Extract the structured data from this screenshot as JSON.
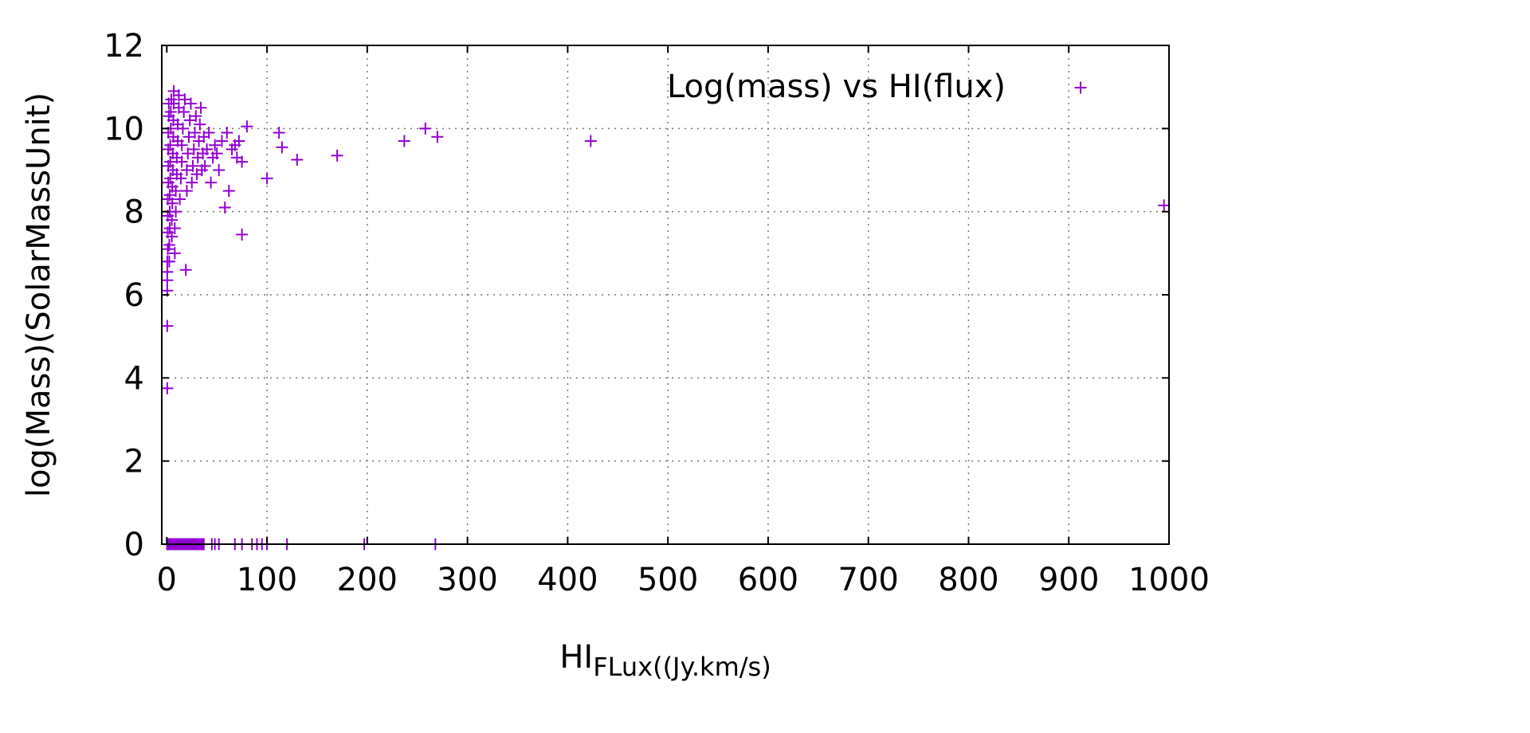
{
  "chart_data": {
    "type": "scatter",
    "xlabel": "HI",
    "xlabel_sub": "FLux((Jy.km/s)",
    "ylabel": "log(Mass)(SolarMassUnit)",
    "xlim": [
      -5,
      1000
    ],
    "ylim": [
      0,
      12
    ],
    "x_ticks": [
      0,
      100,
      200,
      300,
      400,
      500,
      600,
      700,
      800,
      900,
      1000
    ],
    "y_ticks": [
      0,
      2,
      4,
      6,
      8,
      10,
      12
    ],
    "grid": true,
    "legend_position": "top-right",
    "marker": "plus",
    "color": "#9400d3",
    "series": [
      {
        "name": "Log(mass) vs HI(flux)",
        "points": [
          [
            0.5,
            3.75
          ],
          [
            0.5,
            5.25
          ],
          [
            0.5,
            6.1
          ],
          [
            0.5,
            6.35
          ],
          [
            0.5,
            6.55
          ],
          [
            0.5,
            6.8
          ],
          [
            1,
            7.1
          ],
          [
            1,
            7.5
          ],
          [
            1,
            7.9
          ],
          [
            1,
            8.3
          ],
          [
            1.5,
            8.7
          ],
          [
            1.5,
            9.1
          ],
          [
            1.5,
            9.5
          ],
          [
            1.5,
            9.9
          ],
          [
            2,
            10.3
          ],
          [
            2,
            10.6
          ],
          [
            2.5,
            6.8
          ],
          [
            2.5,
            7.2
          ],
          [
            3,
            7.6
          ],
          [
            3,
            8.0
          ],
          [
            3,
            8.4
          ],
          [
            3.5,
            8.8
          ],
          [
            3.5,
            9.2
          ],
          [
            3.5,
            9.6
          ],
          [
            4,
            10.0
          ],
          [
            4,
            10.4
          ],
          [
            4.5,
            10.7
          ],
          [
            5,
            7.4
          ],
          [
            5,
            7.8
          ],
          [
            5.5,
            8.2
          ],
          [
            5.5,
            8.6
          ],
          [
            6,
            9.0
          ],
          [
            6,
            9.4
          ],
          [
            6.5,
            9.8
          ],
          [
            6.5,
            10.2
          ],
          [
            7,
            10.6
          ],
          [
            7,
            10.9
          ],
          [
            8,
            7.0
          ],
          [
            8,
            7.6
          ],
          [
            9,
            8.0
          ],
          [
            9,
            8.5
          ],
          [
            10,
            8.9
          ],
          [
            10,
            9.3
          ],
          [
            11,
            9.7
          ],
          [
            11,
            10.1
          ],
          [
            12,
            10.5
          ],
          [
            12,
            10.8
          ],
          [
            13,
            8.3
          ],
          [
            14,
            8.8
          ],
          [
            15,
            9.2
          ],
          [
            15,
            9.6
          ],
          [
            16,
            10.0
          ],
          [
            17,
            10.4
          ],
          [
            18,
            10.7
          ],
          [
            19,
            6.6
          ],
          [
            20,
            8.5
          ],
          [
            20,
            9.0
          ],
          [
            21,
            9.4
          ],
          [
            22,
            9.8
          ],
          [
            23,
            10.2
          ],
          [
            24,
            10.6
          ],
          [
            25,
            8.7
          ],
          [
            26,
            9.1
          ],
          [
            27,
            9.5
          ],
          [
            28,
            9.9
          ],
          [
            29,
            10.3
          ],
          [
            30,
            8.9
          ],
          [
            31,
            9.3
          ],
          [
            32,
            9.7
          ],
          [
            33,
            10.1
          ],
          [
            34,
            10.5
          ],
          [
            35,
            9.0
          ],
          [
            36,
            9.4
          ],
          [
            37,
            9.8
          ],
          [
            38,
            9.1
          ],
          [
            40,
            9.5
          ],
          [
            42,
            9.9
          ],
          [
            44,
            8.7
          ],
          [
            46,
            9.3
          ],
          [
            48,
            9.6
          ],
          [
            50,
            9.4
          ],
          [
            52,
            9.0
          ],
          [
            55,
            9.7
          ],
          [
            58,
            8.1
          ],
          [
            60,
            9.9
          ],
          [
            62,
            8.5
          ],
          [
            65,
            9.5
          ],
          [
            68,
            9.6
          ],
          [
            70,
            9.3
          ],
          [
            72,
            9.7
          ],
          [
            75,
            7.45
          ],
          [
            75,
            9.2
          ],
          [
            80,
            10.05
          ],
          [
            100,
            8.8
          ],
          [
            112,
            9.9
          ],
          [
            115,
            9.55
          ],
          [
            130,
            9.25
          ],
          [
            170,
            9.35
          ],
          [
            237,
            9.7
          ],
          [
            258,
            10.0
          ],
          [
            270,
            9.8
          ],
          [
            423,
            9.7
          ],
          [
            995,
            8.15
          ],
          [
            0.2,
            0
          ],
          [
            1,
            0
          ],
          [
            2,
            0
          ],
          [
            3,
            0
          ],
          [
            4,
            0
          ],
          [
            5,
            0
          ],
          [
            6,
            0
          ],
          [
            7,
            0
          ],
          [
            8,
            0
          ],
          [
            9,
            0
          ],
          [
            10,
            0
          ],
          [
            11,
            0
          ],
          [
            12,
            0
          ],
          [
            13,
            0
          ],
          [
            14,
            0
          ],
          [
            15,
            0
          ],
          [
            16,
            0
          ],
          [
            17,
            0
          ],
          [
            18,
            0
          ],
          [
            19,
            0
          ],
          [
            20,
            0
          ],
          [
            21,
            0
          ],
          [
            22,
            0
          ],
          [
            23,
            0
          ],
          [
            24,
            0
          ],
          [
            25,
            0
          ],
          [
            26,
            0
          ],
          [
            27,
            0
          ],
          [
            28,
            0
          ],
          [
            29,
            0
          ],
          [
            30,
            0
          ],
          [
            31,
            0
          ],
          [
            32,
            0
          ],
          [
            33,
            0
          ],
          [
            34,
            0
          ],
          [
            35,
            0
          ],
          [
            36,
            0
          ],
          [
            37,
            0
          ],
          [
            45,
            0
          ],
          [
            48,
            0
          ],
          [
            52,
            0
          ],
          [
            68,
            0
          ],
          [
            75,
            0
          ],
          [
            85,
            0
          ],
          [
            90,
            0
          ],
          [
            95,
            0
          ],
          [
            100,
            0
          ],
          [
            120,
            0
          ],
          [
            197,
            0
          ],
          [
            268,
            0
          ]
        ]
      }
    ]
  }
}
